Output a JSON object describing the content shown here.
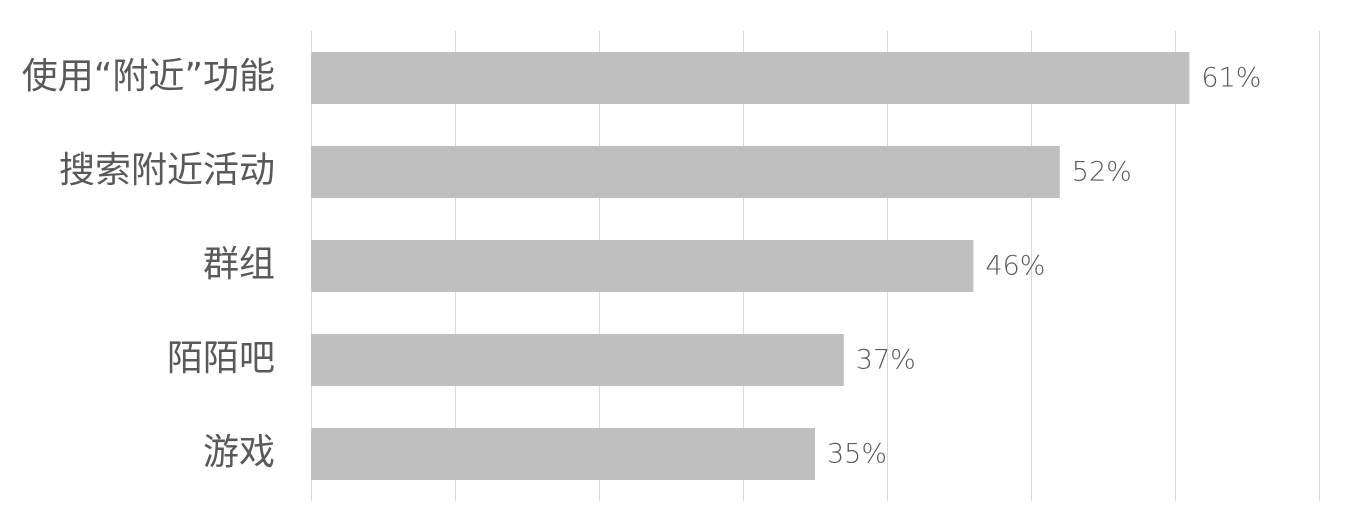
{
  "chart_data": {
    "type": "bar",
    "orientation": "horizontal",
    "categories": [
      "使用“附近”功能",
      "搜索附近活动",
      "群组",
      "陌陌吧",
      "游戏"
    ],
    "values": [
      61,
      52,
      46,
      37,
      35
    ],
    "value_labels": [
      "61%",
      "52%",
      "46%",
      "37%",
      "35%"
    ],
    "color": "#bfbfbf",
    "xlim": [
      0,
      70
    ],
    "xticks": [
      0,
      10,
      20,
      30,
      40,
      50,
      60,
      70
    ],
    "grid": true
  }
}
